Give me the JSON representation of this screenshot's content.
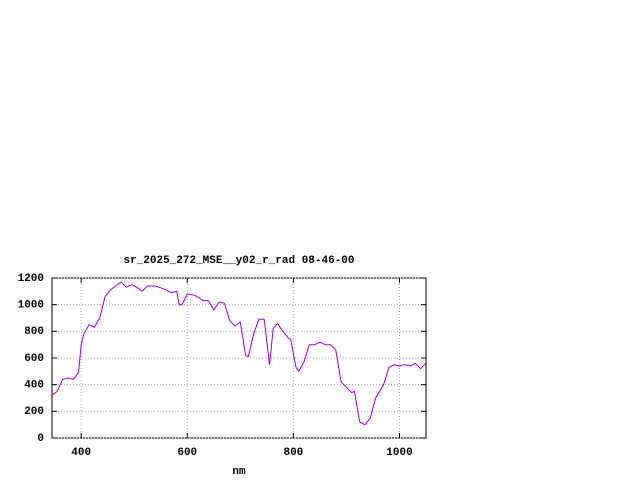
{
  "chart_data": {
    "type": "line",
    "title": "sr_2025_272_MSE__y02_r_rad 08-46-00",
    "x_label": "nm",
    "x": [
      345,
      355,
      365,
      375,
      385,
      395,
      400,
      405,
      415,
      425,
      435,
      445,
      455,
      465,
      475,
      485,
      495,
      505,
      515,
      525,
      540,
      555,
      570,
      580,
      585,
      590,
      600,
      615,
      630,
      640,
      650,
      660,
      670,
      680,
      690,
      700,
      710,
      715,
      725,
      735,
      745,
      750,
      755,
      762,
      770,
      780,
      790,
      795,
      805,
      810,
      820,
      830,
      840,
      850,
      860,
      870,
      880,
      890,
      900,
      910,
      915,
      925,
      935,
      945,
      955,
      970,
      980,
      990,
      1000,
      1010,
      1020,
      1030,
      1040,
      1049
    ],
    "values": [
      320,
      350,
      440,
      450,
      440,
      490,
      700,
      780,
      850,
      830,
      900,
      1060,
      1110,
      1140,
      1170,
      1130,
      1150,
      1130,
      1100,
      1140,
      1140,
      1120,
      1090,
      1100,
      1000,
      1000,
      1080,
      1070,
      1030,
      1030,
      960,
      1020,
      1010,
      880,
      840,
      870,
      620,
      610,
      780,
      890,
      890,
      720,
      550,
      820,
      860,
      800,
      750,
      740,
      530,
      500,
      570,
      700,
      700,
      720,
      700,
      700,
      660,
      420,
      380,
      340,
      350,
      120,
      100,
      150,
      300,
      400,
      530,
      550,
      540,
      550,
      540,
      560,
      520,
      560
    ],
    "color": "#9400d3",
    "xlim": [
      345,
      1050
    ],
    "ylim": [
      0,
      1200
    ],
    "xticks": [
      400,
      600,
      800,
      1000
    ],
    "yticks": [
      0,
      200,
      400,
      600,
      800,
      1000,
      1200
    ],
    "grid": true
  }
}
